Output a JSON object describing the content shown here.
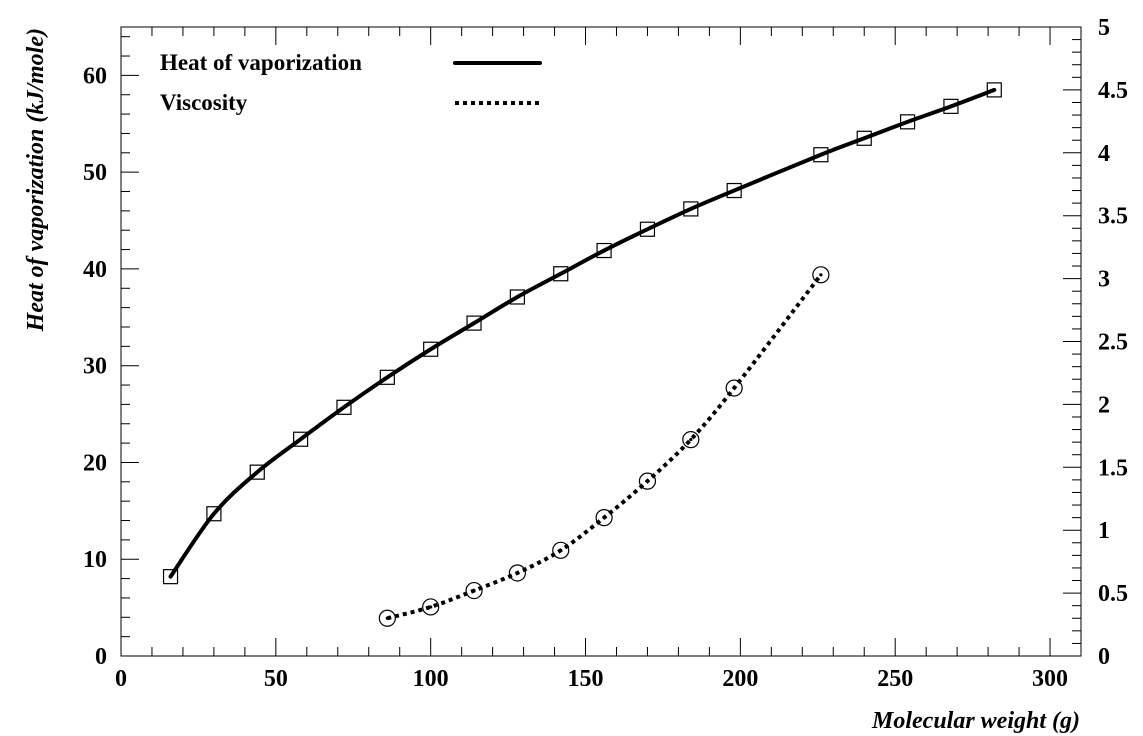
{
  "chart_data": {
    "type": "line",
    "x_axis": {
      "label": "Molecular weight (g)",
      "range": [
        0,
        310
      ],
      "ticks": [
        0,
        50,
        100,
        150,
        200,
        250,
        300
      ],
      "tick_labels": [
        "0",
        "50",
        "100",
        "150",
        "200",
        "250",
        "300"
      ]
    },
    "y_axis_left": {
      "label": "Heat of vaporization (kJ/mole)",
      "range": [
        0,
        65
      ],
      "ticks": [
        0,
        10,
        20,
        30,
        40,
        50,
        60
      ],
      "tick_labels": [
        "0",
        "10",
        "20",
        "30",
        "40",
        "50",
        "60"
      ]
    },
    "y_axis_right": {
      "label": "",
      "range": [
        0,
        5
      ],
      "ticks": [
        0,
        0.5,
        1,
        1.5,
        2,
        2.5,
        3,
        3.5,
        4,
        4.5,
        5
      ],
      "tick_labels": [
        "0",
        "0.5",
        "1",
        "1.5",
        "2",
        "2.5",
        "3",
        "3.5",
        "4",
        "4.5",
        "5"
      ]
    },
    "grid": false,
    "legend_position": "top-left",
    "series": [
      {
        "name": "Heat of vaporization",
        "axis": "left",
        "line_style": "solid",
        "marker": "square",
        "x": [
          16,
          30,
          44,
          58,
          72,
          86,
          100,
          114,
          128,
          142,
          156,
          170,
          184,
          198,
          226,
          240,
          254,
          268,
          282
        ],
        "y": [
          8.2,
          14.7,
          19.0,
          22.4,
          25.7,
          28.8,
          31.7,
          34.4,
          37.1,
          39.5,
          41.9,
          44.1,
          46.2,
          48.1,
          51.8,
          53.5,
          55.2,
          56.8,
          58.5
        ]
      },
      {
        "name": "Viscosity",
        "axis": "right",
        "line_style": "dotted",
        "marker": "circle",
        "x": [
          86,
          100,
          114,
          128,
          142,
          156,
          170,
          184,
          198,
          226
        ],
        "y": [
          0.3,
          0.39,
          0.52,
          0.66,
          0.84,
          1.1,
          1.39,
          1.72,
          2.13,
          3.03
        ]
      }
    ]
  }
}
